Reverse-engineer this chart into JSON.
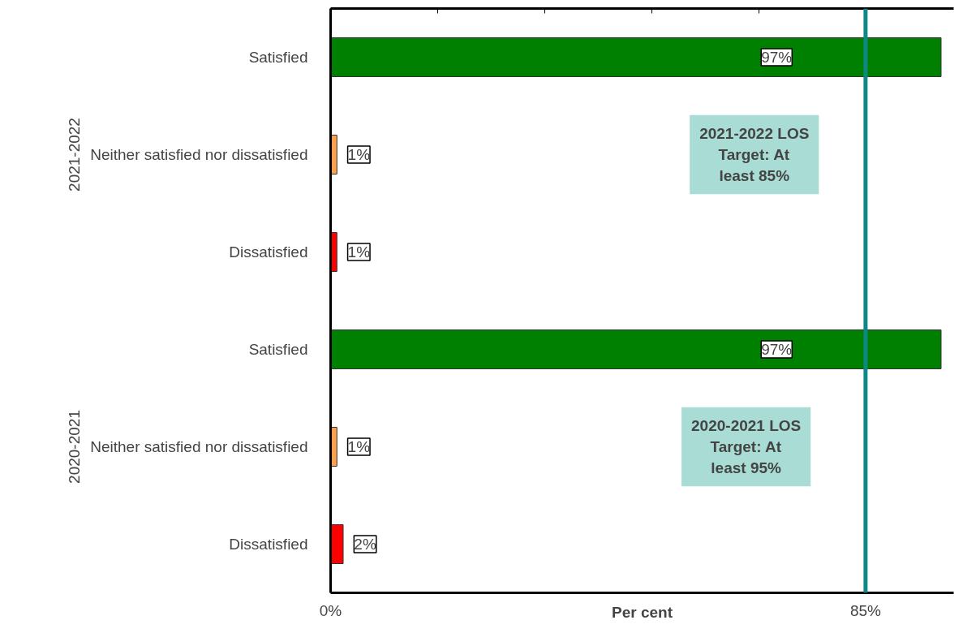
{
  "chart_data": {
    "type": "bar",
    "orientation": "horizontal",
    "xlabel": "Per cent",
    "categories": [
      "Satisfied",
      "Neither satisfied nor dissatisfied",
      "Dissatisfied",
      "Satisfied",
      "Neither satisfied nor dissatisfied",
      "Dissatisfied"
    ],
    "values": [
      97,
      1,
      1,
      97,
      1,
      2
    ],
    "colors": [
      "#008000",
      "#ffa04a",
      "#ff0000",
      "#008000",
      "#ffa04a",
      "#ff0000"
    ],
    "value_labels": [
      "97%",
      "1%",
      "1%",
      "97%",
      "1%",
      "2%"
    ],
    "xlim": [
      0,
      99
    ],
    "xticks": [
      {
        "value": 0,
        "label": "0%"
      },
      {
        "value": 17,
        "label": null
      },
      {
        "value": 34,
        "label": null
      },
      {
        "value": 51,
        "label": null
      },
      {
        "value": 68,
        "label": null
      },
      {
        "value": 85,
        "label": "85%"
      }
    ],
    "ref_lines": [
      {
        "axis": "x",
        "value": 85,
        "color": "#0e8787"
      }
    ],
    "annotations": [
      "2021-2022",
      "2020-2021",
      "2021-2022 LOS Target: At least 85%",
      "2020-2021 LOS Target: At least 95%"
    ],
    "grid": false
  }
}
